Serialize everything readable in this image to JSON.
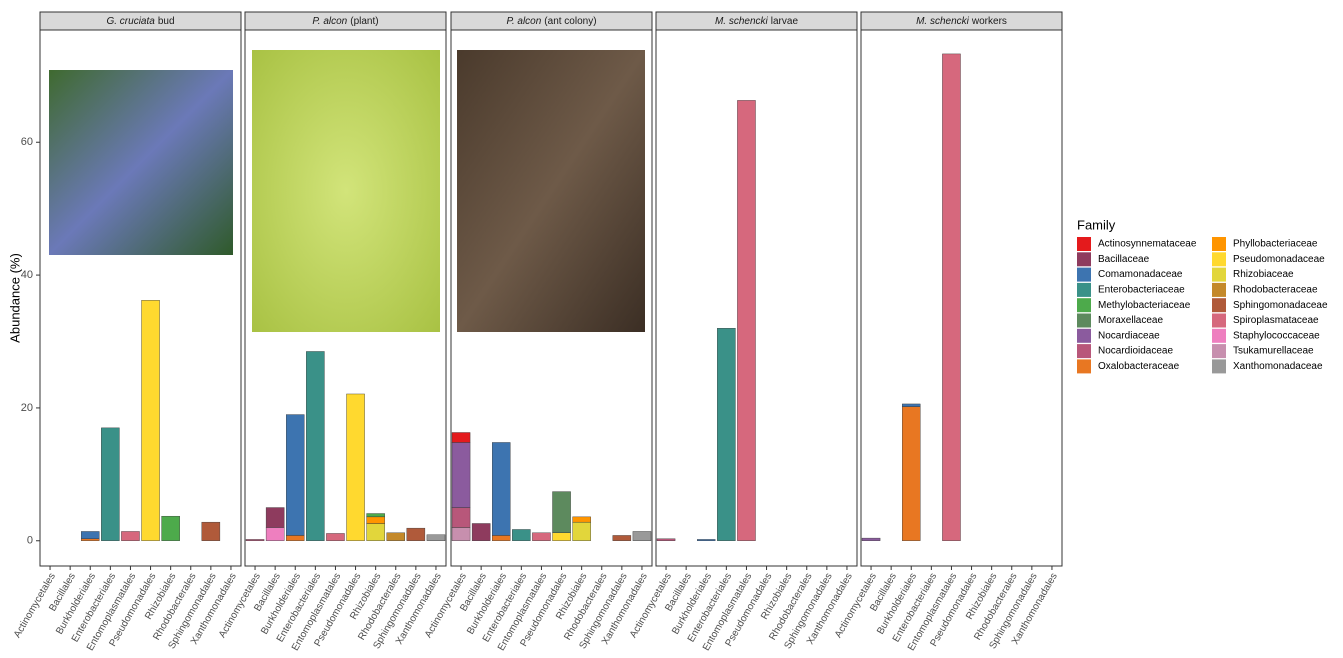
{
  "chart_data": {
    "type": "bar",
    "stacked": true,
    "y_label": "Abundance (%)",
    "ylim": [
      -3.8,
      76.9
    ],
    "yticks": [
      0,
      20,
      40,
      60
    ],
    "categories": [
      "Actinomycetales",
      "Bacillales",
      "Burkholderiales",
      "Enterobacteriales",
      "Entomoplasmatales",
      "Pseudomonadales",
      "Rhizobiales",
      "Rhodobacterales",
      "Sphingomonadales",
      "Xanthomonadales"
    ],
    "legend": {
      "title": "Family",
      "entries": [
        {
          "name": "Actinosynnemataceae",
          "color": "#e41a1c"
        },
        {
          "name": "Bacillaceae",
          "color": "#8e3b5e"
        },
        {
          "name": "Comamonadaceae",
          "color": "#3d74b0"
        },
        {
          "name": "Enterobacteriaceae",
          "color": "#3a9188"
        },
        {
          "name": "Methylobacteriaceae",
          "color": "#4daa4b"
        },
        {
          "name": "Moraxellaceae",
          "color": "#5d8a5e"
        },
        {
          "name": "Nocardiaceae",
          "color": "#8b5b9e"
        },
        {
          "name": "Nocardioidaceae",
          "color": "#b8577a"
        },
        {
          "name": "Oxalobacteraceae",
          "color": "#e87722"
        },
        {
          "name": "Phyllobacteriaceae",
          "color": "#ff9500"
        },
        {
          "name": "Pseudomonadaceae",
          "color": "#ffd92f"
        },
        {
          "name": "Rhizobiaceae",
          "color": "#e2d63b"
        },
        {
          "name": "Rhodobacteraceae",
          "color": "#c4892a"
        },
        {
          "name": "Sphingomonadaceae",
          "color": "#b05a3a"
        },
        {
          "name": "Spiroplasmataceae",
          "color": "#d6687d"
        },
        {
          "name": "Staphylococcaceae",
          "color": "#ee7fbf"
        },
        {
          "name": "Tsukamurellaceae",
          "color": "#c78fae"
        },
        {
          "name": "Xanthomonadaceae",
          "color": "#999999"
        }
      ]
    },
    "panels": [
      {
        "title_italic": "G. cruciata",
        "title": "bud",
        "series": [
          {
            "name": "Oxalobacteraceae",
            "color": "#e87722",
            "values": [
              null,
              null,
              0.3,
              null,
              null,
              null,
              null,
              null,
              null,
              null
            ]
          },
          {
            "name": "Comamonadaceae",
            "color": "#3d74b0",
            "values": [
              null,
              null,
              1.1,
              null,
              null,
              null,
              null,
              null,
              null,
              null
            ]
          },
          {
            "name": "Enterobacteriaceae",
            "color": "#3a9188",
            "values": [
              null,
              null,
              null,
              17,
              null,
              null,
              null,
              null,
              null,
              null
            ]
          },
          {
            "name": "Spiroplasmataceae",
            "color": "#d6687d",
            "values": [
              null,
              null,
              null,
              null,
              1.4,
              null,
              null,
              null,
              null,
              null
            ]
          },
          {
            "name": "Pseudomonadaceae",
            "color": "#ffd92f",
            "values": [
              null,
              null,
              null,
              null,
              null,
              36.2,
              null,
              null,
              null,
              null
            ]
          },
          {
            "name": "Methylobacteriaceae",
            "color": "#4daa4b",
            "values": [
              null,
              null,
              null,
              null,
              null,
              null,
              3.7,
              null,
              null,
              null
            ]
          },
          {
            "name": "Sphingomonadaceae",
            "color": "#b05a3a",
            "values": [
              null,
              null,
              null,
              null,
              null,
              null,
              null,
              null,
              2.8,
              null
            ]
          }
        ]
      },
      {
        "title_italic": "P. alcon",
        "title": "(plant)",
        "series": [
          {
            "name": "Nocardioidaceae",
            "color": "#b8577a",
            "values": [
              0.2,
              null,
              null,
              null,
              null,
              null,
              null,
              null,
              null,
              null
            ]
          },
          {
            "name": "Staphylococcaceae",
            "color": "#ee7fbf",
            "values": [
              null,
              2.0,
              null,
              null,
              null,
              null,
              null,
              null,
              null,
              null
            ]
          },
          {
            "name": "Bacillaceae",
            "color": "#8e3b5e",
            "values": [
              null,
              3.0,
              null,
              null,
              null,
              null,
              null,
              null,
              null,
              null
            ]
          },
          {
            "name": "Oxalobacteraceae",
            "color": "#e87722",
            "values": [
              null,
              null,
              0.8,
              null,
              null,
              null,
              null,
              null,
              null,
              null
            ]
          },
          {
            "name": "Comamonadaceae",
            "color": "#3d74b0",
            "values": [
              null,
              null,
              18.2,
              null,
              null,
              null,
              null,
              null,
              null,
              null
            ]
          },
          {
            "name": "Enterobacteriaceae",
            "color": "#3a9188",
            "values": [
              null,
              null,
              null,
              28.5,
              null,
              null,
              null,
              null,
              null,
              null
            ]
          },
          {
            "name": "Spiroplasmataceae",
            "color": "#d6687d",
            "values": [
              null,
              null,
              null,
              null,
              1.1,
              null,
              null,
              null,
              null,
              null
            ]
          },
          {
            "name": "Pseudomonadaceae",
            "color": "#ffd92f",
            "values": [
              null,
              null,
              null,
              null,
              null,
              22.1,
              null,
              null,
              null,
              null
            ]
          },
          {
            "name": "Rhizobiaceae",
            "color": "#e2d63b",
            "values": [
              null,
              null,
              null,
              null,
              null,
              null,
              2.6,
              null,
              null,
              null
            ]
          },
          {
            "name": "Phyllobacteriaceae",
            "color": "#ff9500",
            "values": [
              null,
              null,
              null,
              null,
              null,
              null,
              1.0,
              null,
              null,
              null
            ]
          },
          {
            "name": "Methylobacteriaceae",
            "color": "#4daa4b",
            "values": [
              null,
              null,
              null,
              null,
              null,
              null,
              0.5,
              null,
              null,
              null
            ]
          },
          {
            "name": "Rhodobacteraceae",
            "color": "#c4892a",
            "values": [
              null,
              null,
              null,
              null,
              null,
              null,
              null,
              1.2,
              null,
              null
            ]
          },
          {
            "name": "Sphingomonadaceae",
            "color": "#b05a3a",
            "values": [
              null,
              null,
              null,
              null,
              null,
              null,
              null,
              null,
              1.9,
              null
            ]
          },
          {
            "name": "Xanthomonadaceae",
            "color": "#999999",
            "values": [
              null,
              null,
              null,
              null,
              null,
              null,
              null,
              null,
              null,
              0.9
            ]
          }
        ]
      },
      {
        "title_italic": "P. alcon",
        "title": "(ant colony)",
        "series": [
          {
            "name": "Tsukamurellaceae",
            "color": "#c78fae",
            "values": [
              2.0,
              null,
              null,
              null,
              null,
              null,
              null,
              null,
              null,
              null
            ]
          },
          {
            "name": "Nocardioidaceae",
            "color": "#b8577a",
            "values": [
              3.0,
              null,
              null,
              null,
              null,
              null,
              null,
              null,
              null,
              null
            ]
          },
          {
            "name": "Nocardiaceae",
            "color": "#8b5b9e",
            "values": [
              9.8,
              null,
              null,
              null,
              null,
              null,
              null,
              null,
              null,
              null
            ]
          },
          {
            "name": "Actinosynnemataceae",
            "color": "#e41a1c",
            "values": [
              1.5,
              null,
              null,
              null,
              null,
              null,
              null,
              null,
              null,
              null
            ]
          },
          {
            "name": "Bacillaceae",
            "color": "#8e3b5e",
            "values": [
              null,
              2.6,
              null,
              null,
              null,
              null,
              null,
              null,
              null,
              null
            ]
          },
          {
            "name": "Oxalobacteraceae",
            "color": "#e87722",
            "values": [
              null,
              null,
              0.8,
              null,
              null,
              null,
              null,
              null,
              null,
              null
            ]
          },
          {
            "name": "Comamonadaceae",
            "color": "#3d74b0",
            "values": [
              null,
              null,
              14.0,
              null,
              null,
              null,
              null,
              null,
              null,
              null
            ]
          },
          {
            "name": "Enterobacteriaceae",
            "color": "#3a9188",
            "values": [
              null,
              null,
              null,
              1.7,
              null,
              null,
              null,
              null,
              null,
              null
            ]
          },
          {
            "name": "Spiroplasmataceae",
            "color": "#d6687d",
            "values": [
              null,
              null,
              null,
              null,
              1.2,
              null,
              null,
              null,
              null,
              null
            ]
          },
          {
            "name": "Pseudomonadaceae",
            "color": "#ffd92f",
            "values": [
              null,
              null,
              null,
              null,
              null,
              1.2,
              null,
              null,
              null,
              null
            ]
          },
          {
            "name": "Moraxellaceae",
            "color": "#5d8a5e",
            "values": [
              null,
              null,
              null,
              null,
              null,
              6.2,
              null,
              null,
              null,
              null
            ]
          },
          {
            "name": "Rhizobiaceae",
            "color": "#e2d63b",
            "values": [
              null,
              null,
              null,
              null,
              null,
              null,
              2.8,
              null,
              null,
              null
            ]
          },
          {
            "name": "Phyllobacteriaceae",
            "color": "#ff9500",
            "values": [
              null,
              null,
              null,
              null,
              null,
              null,
              0.8,
              null,
              null,
              null
            ]
          },
          {
            "name": "Sphingomonadaceae",
            "color": "#b05a3a",
            "values": [
              null,
              null,
              null,
              null,
              null,
              null,
              null,
              null,
              0.8,
              null
            ]
          },
          {
            "name": "Xanthomonadaceae",
            "color": "#999999",
            "values": [
              null,
              null,
              null,
              null,
              null,
              null,
              null,
              null,
              null,
              1.4
            ]
          }
        ]
      },
      {
        "title_italic": "M. schencki",
        "title": "larvae",
        "series": [
          {
            "name": "Nocardioidaceae",
            "color": "#b8577a",
            "values": [
              0.3,
              null,
              null,
              null,
              null,
              null,
              null,
              null,
              null,
              null
            ]
          },
          {
            "name": "Comamonadaceae",
            "color": "#3d74b0",
            "values": [
              null,
              null,
              0.2,
              null,
              null,
              null,
              null,
              null,
              null,
              null
            ]
          },
          {
            "name": "Enterobacteriaceae",
            "color": "#3a9188",
            "values": [
              null,
              null,
              null,
              32,
              null,
              null,
              null,
              null,
              null,
              null
            ]
          },
          {
            "name": "Spiroplasmataceae",
            "color": "#d6687d",
            "values": [
              null,
              null,
              null,
              null,
              66.3,
              null,
              null,
              null,
              null,
              null
            ]
          }
        ]
      },
      {
        "title_italic": "M. schencki",
        "title": "workers",
        "series": [
          {
            "name": "Nocardiaceae",
            "color": "#8b5b9e",
            "values": [
              0.4,
              null,
              null,
              null,
              null,
              null,
              null,
              null,
              null,
              null
            ]
          },
          {
            "name": "Oxalobacteraceae",
            "color": "#e87722",
            "values": [
              null,
              null,
              20.2,
              null,
              null,
              null,
              null,
              null,
              null,
              null
            ]
          },
          {
            "name": "Comamonadaceae",
            "color": "#3d74b0",
            "values": [
              null,
              null,
              0.4,
              null,
              null,
              null,
              null,
              null,
              null,
              null
            ]
          },
          {
            "name": "Spiroplasmataceae",
            "color": "#d6687d",
            "values": [
              null,
              null,
              null,
              null,
              73.3,
              null,
              null,
              null,
              null,
              null
            ]
          }
        ]
      }
    ]
  }
}
